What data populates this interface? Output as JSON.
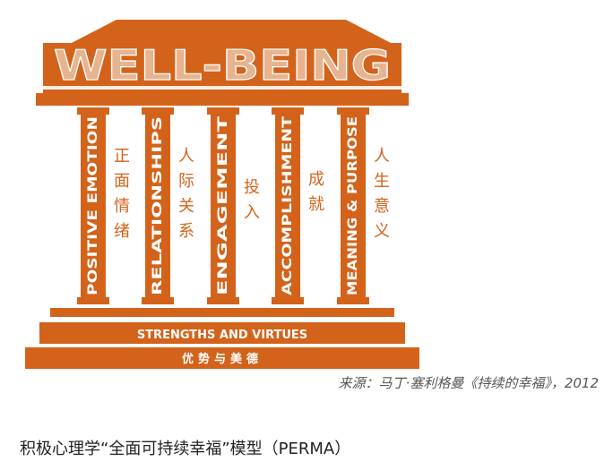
{
  "title": "WELL-BEING",
  "pillars": [
    {
      "en": "POSITIVE EMOTION",
      "zh": "正面情绪"
    },
    {
      "en": "RELATIONSHIPS",
      "zh": "人际关系"
    },
    {
      "en": "ENGAGEMENT",
      "zh": "投入"
    },
    {
      "en": "ACCOMPLISHMENT",
      "zh": "成就"
    },
    {
      "en": "MEANING & PURPOSE",
      "zh": "人生意义"
    }
  ],
  "foundation": {
    "en": "STRENGTHS AND VIRTUES",
    "zh": "优势与美德"
  },
  "source": "来源：马丁·塞利格曼《持续的幸福》，2012",
  "caption": "积极心理学“全面可持续幸福”模型（PERMA）",
  "colors": {
    "orange": "#d3631b",
    "cream": "#fbeee6",
    "white": "#ffffff",
    "title_fill": "#e8b48f"
  }
}
